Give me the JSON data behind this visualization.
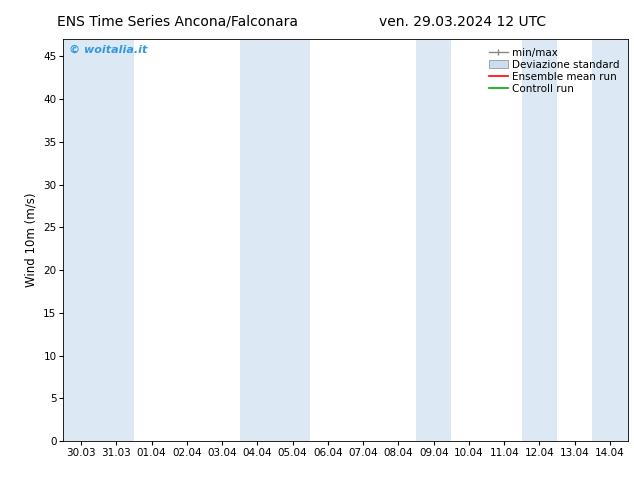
{
  "title_left": "ENS Time Series Ancona/Falconara",
  "title_right": "ven. 29.03.2024 12 UTC",
  "ylabel": "Wind 10m (m/s)",
  "ylim": [
    0,
    47
  ],
  "yticks": [
    0,
    5,
    10,
    15,
    20,
    25,
    30,
    35,
    40,
    45
  ],
  "xtick_labels": [
    "30.03",
    "31.03",
    "01.04",
    "02.04",
    "03.04",
    "04.04",
    "05.04",
    "06.04",
    "07.04",
    "08.04",
    "09.04",
    "10.04",
    "11.04",
    "12.04",
    "13.04",
    "14.04"
  ],
  "n_xticks": 16,
  "bg_color": "#ffffff",
  "plot_bg_color": "#ffffff",
  "shaded_band_color": "#dce9f5",
  "shaded_columns": [
    0,
    1,
    5,
    6,
    10,
    13,
    15
  ],
  "watermark_text": "© woitalia.it",
  "watermark_color": "#3399dd",
  "legend_entries": [
    "min/max",
    "Deviazione standard",
    "Ensemble mean run",
    "Controll run"
  ],
  "legend_colors_line": [
    "#999999",
    "#bbbbbb",
    "#ff0000",
    "#00aa00"
  ],
  "font_family": "DejaVu Sans",
  "title_fontsize": 10,
  "tick_fontsize": 7.5,
  "ylabel_fontsize": 8.5,
  "legend_fontsize": 7.5
}
